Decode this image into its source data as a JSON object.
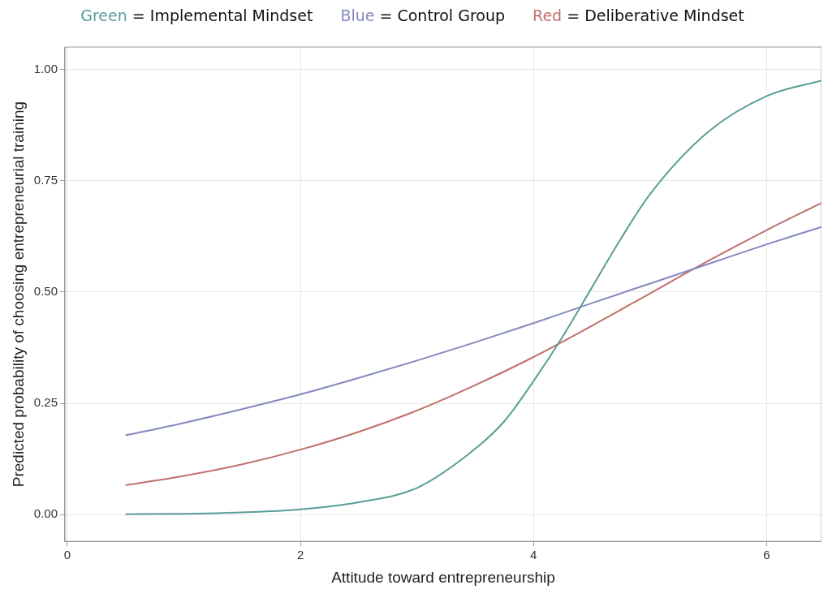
{
  "chart_data": {
    "type": "line",
    "xlabel": "Attitude toward entrepreneurship",
    "ylabel": "Predicted probability of choosing entrepreneurial training",
    "xlim": [
      -0.02,
      6.47
    ],
    "xticks": [
      0,
      2,
      4,
      6
    ],
    "ylim": [
      -0.06,
      1.05
    ],
    "yticks": [
      {
        "value": 0,
        "label": "0.00"
      },
      0.25,
      {
        "value": 0.5,
        "label": "0.50"
      },
      0.75,
      {
        "value": 1,
        "label": "1.00"
      }
    ],
    "grid": true,
    "legend": "top",
    "marker": "none",
    "line_style": "solid",
    "series": [
      {
        "name": "Green = Implemental Mindset",
        "color": "#5a9e97",
        "x": [
          0.5,
          1,
          1.5,
          2,
          2.5,
          3,
          3.5,
          3.75,
          4,
          4.25,
          4.5,
          4.75,
          5,
          5.5,
          6,
          6.47
        ],
        "values": [
          0.001,
          0.002,
          0.005,
          0.012,
          0.028,
          0.06,
          0.148,
          0.21,
          0.3,
          0.4,
          0.51,
          0.62,
          0.72,
          0.86,
          0.94,
          0.975
        ]
      },
      {
        "name": "Blue = Control Group",
        "color": "#8488bf",
        "x": [
          0.5,
          1,
          1.5,
          2,
          2.5,
          3,
          3.5,
          4,
          4.5,
          5,
          5.5,
          6,
          6.47
        ],
        "values": [
          0.178,
          0.206,
          0.237,
          0.27,
          0.307,
          0.346,
          0.387,
          0.43,
          0.475,
          0.519,
          0.563,
          0.607,
          0.646
        ]
      },
      {
        "name": "Red = Deliberative Mindset",
        "color": "#c0706a",
        "x": [
          0.5,
          1,
          1.5,
          2,
          2.5,
          3,
          3.5,
          4,
          4.5,
          5,
          5.5,
          6,
          6.47
        ],
        "values": [
          0.066,
          0.087,
          0.113,
          0.146,
          0.186,
          0.234,
          0.291,
          0.354,
          0.424,
          0.497,
          0.57,
          0.639,
          0.7
        ]
      }
    ]
  }
}
